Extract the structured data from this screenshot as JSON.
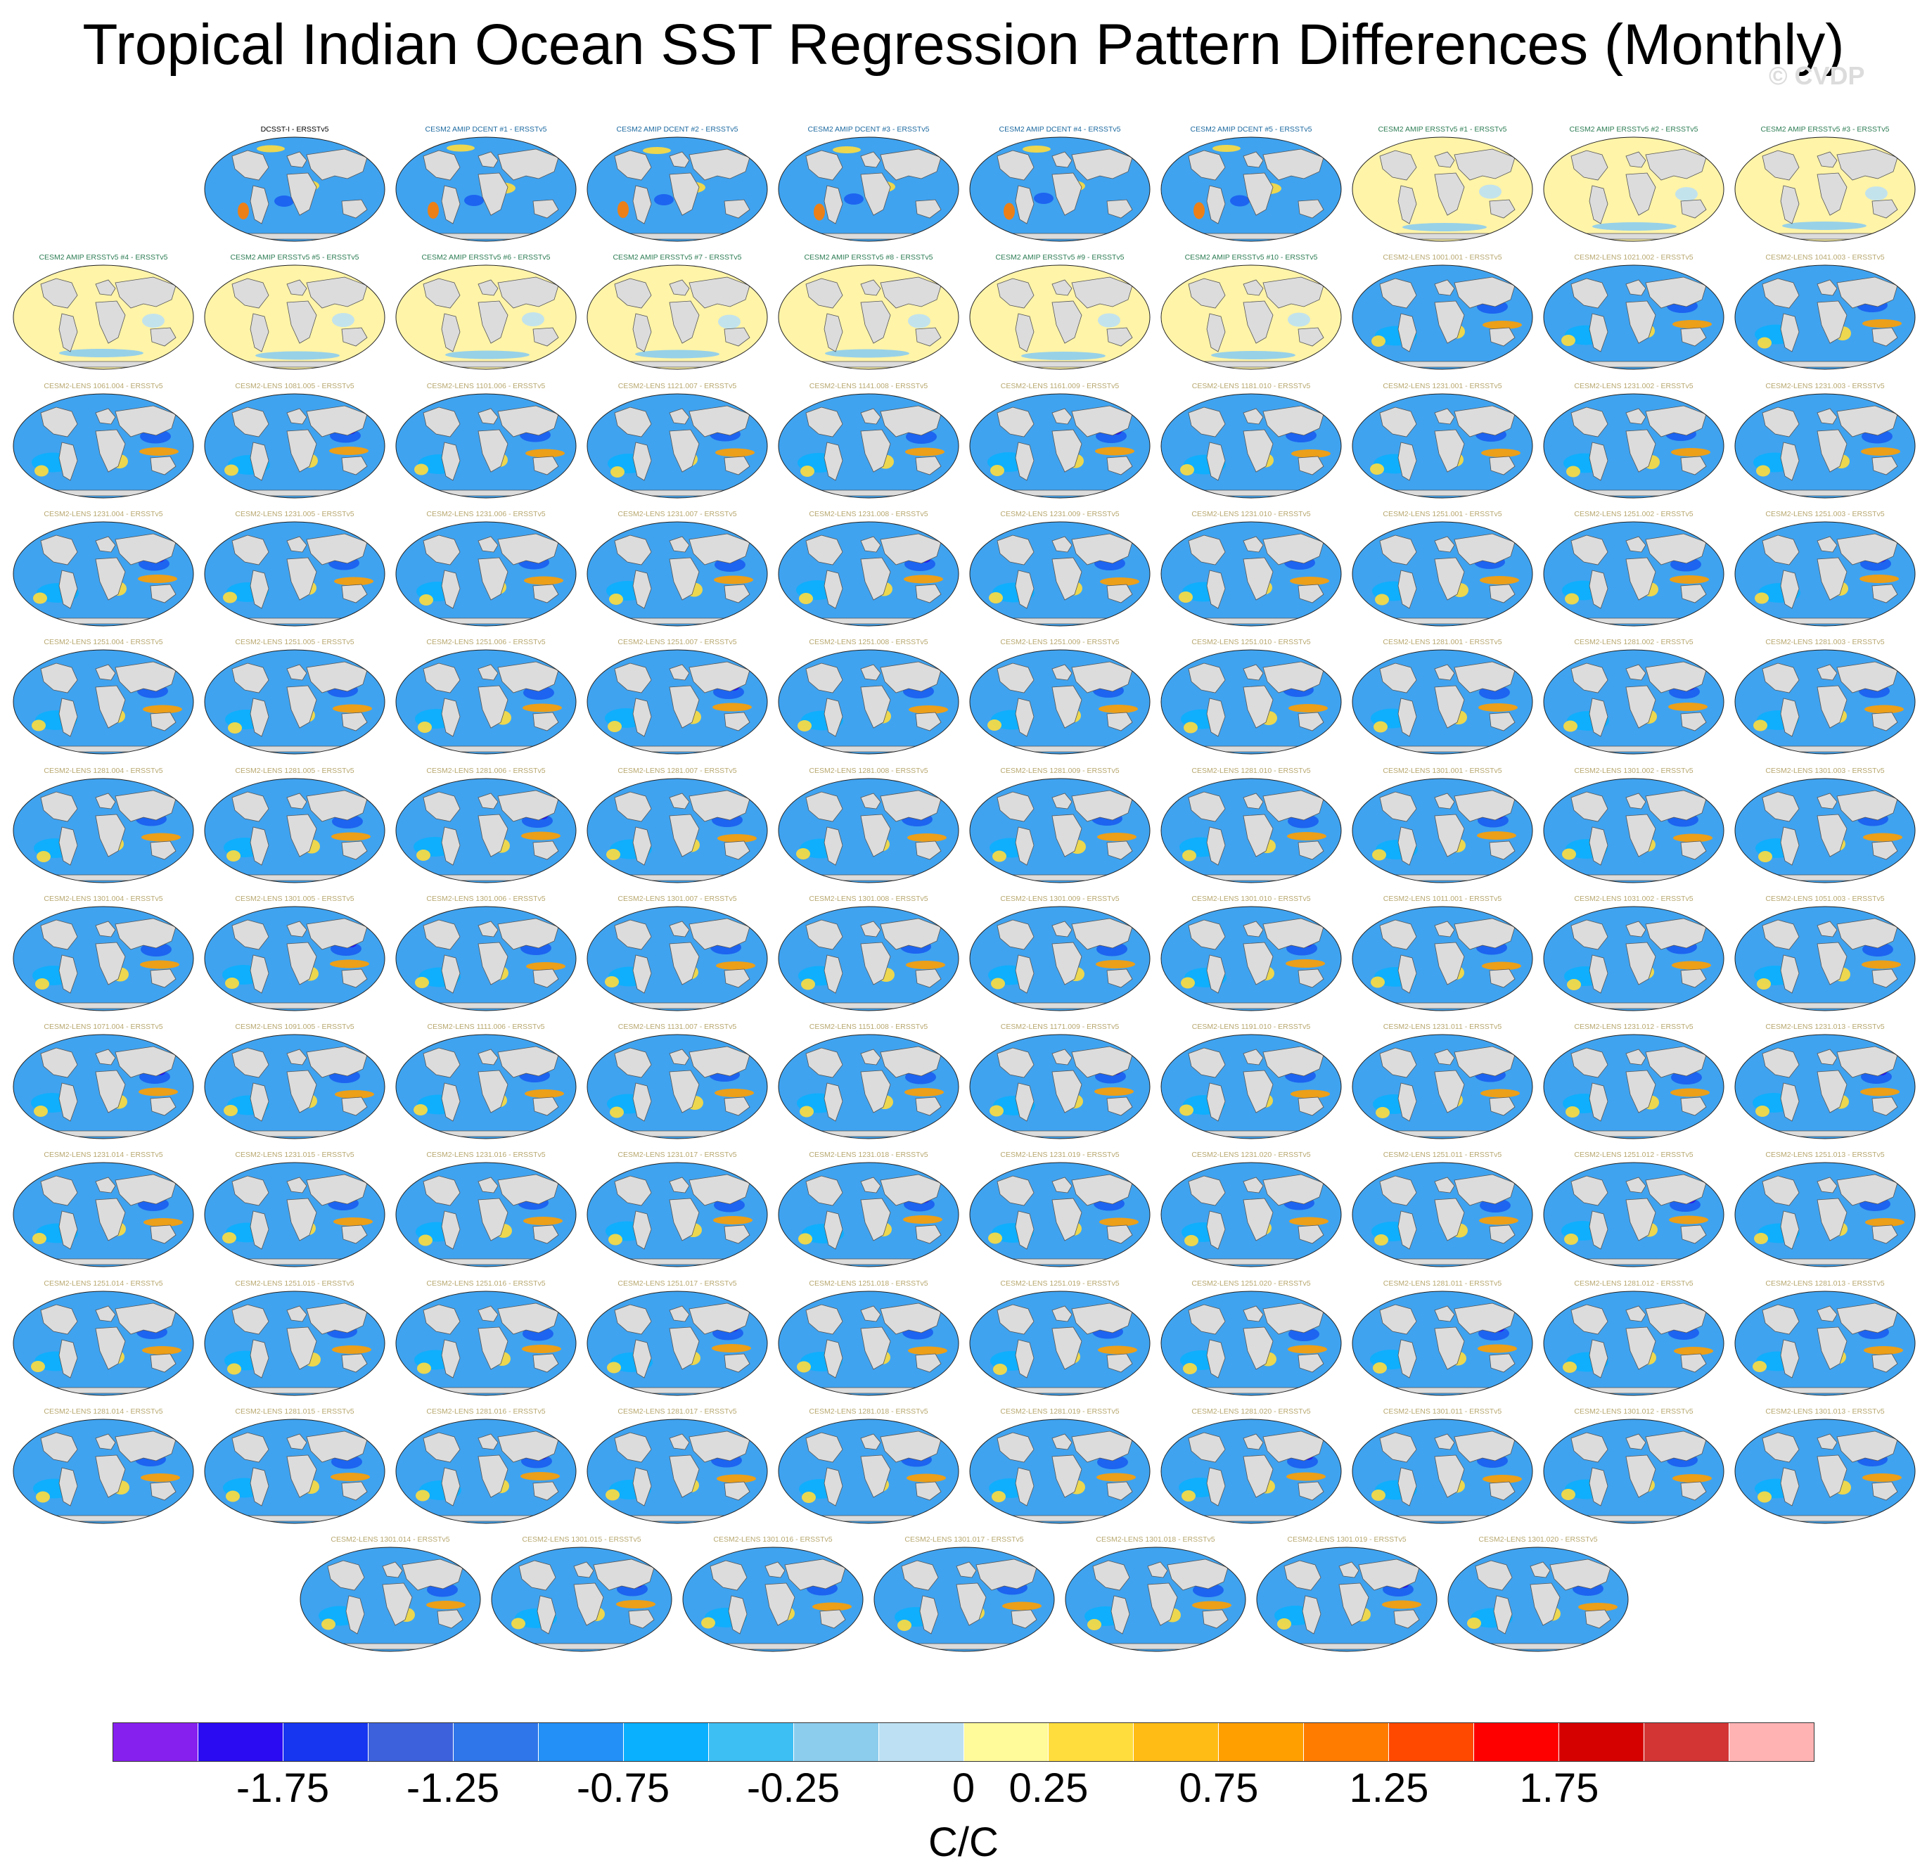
{
  "title": "Tropical Indian Ocean SST Regression Pattern Differences (Monthly)",
  "watermark": "© CVDP",
  "colorbar": {
    "units": "C/C",
    "tick_labels": [
      "-1.75",
      "-1.25",
      "-0.75",
      "-0.25",
      "0",
      "0.25",
      "0.75",
      "1.25",
      "1.75"
    ],
    "colors": [
      "#8620ee",
      "#2a0bf2",
      "#1636f0",
      "#3d61dd",
      "#2f76ea",
      "#2290f6",
      "#0ab0fe",
      "#3ebff4",
      "#8ccdee",
      "#bde1f3",
      "#fffa9a",
      "#ffdd3d",
      "#ffbc15",
      "#ff9f00",
      "#ff7c00",
      "#ff4800",
      "#ff0000",
      "#d50000",
      "#d33535",
      "#ffb3b3"
    ]
  },
  "panel_rows": [
    {
      "count": 9,
      "start": 1
    },
    {
      "count": 10,
      "start": 0
    },
    {
      "count": 10,
      "start": 0
    },
    {
      "count": 10,
      "start": 0
    },
    {
      "count": 10,
      "start": 0
    },
    {
      "count": 10,
      "start": 0
    },
    {
      "count": 10,
      "start": 0
    },
    {
      "count": 10,
      "start": 0
    },
    {
      "count": 10,
      "start": 0
    },
    {
      "count": 10,
      "start": 0
    },
    {
      "count": 10,
      "start": 0
    },
    {
      "count": 7,
      "start": 1.5
    }
  ],
  "panels": [
    {
      "title": "DCSST-I - ERSSTv5",
      "style": "obs"
    },
    {
      "title": "CESM2 AMIP DCENT #1 - ERSSTv5",
      "style": "dcent"
    },
    {
      "title": "CESM2 AMIP DCENT #2 - ERSSTv5",
      "style": "dcent"
    },
    {
      "title": "CESM2 AMIP DCENT #3 - ERSSTv5",
      "style": "dcent"
    },
    {
      "title": "CESM2 AMIP DCENT #4 - ERSSTv5",
      "style": "dcent"
    },
    {
      "title": "CESM2 AMIP DCENT #5 - ERSSTv5",
      "style": "dcent"
    },
    {
      "title": "CESM2 AMIP ERSSTv5 #1 - ERSSTv5",
      "style": "ersst"
    },
    {
      "title": "CESM2 AMIP ERSSTv5 #2 - ERSSTv5",
      "style": "ersst"
    },
    {
      "title": "CESM2 AMIP ERSSTv5 #3 - ERSSTv5",
      "style": "ersst"
    },
    {
      "title": "CESM2 AMIP ERSSTv5 #4 - ERSSTv5",
      "style": "ersst"
    },
    {
      "title": "CESM2 AMIP ERSSTv5 #5 - ERSSTv5",
      "style": "ersst"
    },
    {
      "title": "CESM2 AMIP ERSSTv5 #6 - ERSSTv5",
      "style": "ersst"
    },
    {
      "title": "CESM2 AMIP ERSSTv5 #7 - ERSSTv5",
      "style": "ersst"
    },
    {
      "title": "CESM2 AMIP ERSSTv5 #8 - ERSSTv5",
      "style": "ersst"
    },
    {
      "title": "CESM2 AMIP ERSSTv5 #9 - ERSSTv5",
      "style": "ersst"
    },
    {
      "title": "CESM2 AMIP ERSSTv5 #10 - ERSSTv5",
      "style": "ersst"
    },
    {
      "title": "CESM2-LENS 1001.001 - ERSSTv5",
      "style": "lens"
    },
    {
      "title": "CESM2-LENS 1021.002 - ERSSTv5",
      "style": "lens"
    },
    {
      "title": "CESM2-LENS 1041.003 - ERSSTv5",
      "style": "lens"
    },
    {
      "title": "CESM2-LENS 1061.004 - ERSSTv5",
      "style": "lens"
    },
    {
      "title": "CESM2-LENS 1081.005 - ERSSTv5",
      "style": "lens"
    },
    {
      "title": "CESM2-LENS 1101.006 - ERSSTv5",
      "style": "lens"
    },
    {
      "title": "CESM2-LENS 1121.007 - ERSSTv5",
      "style": "lens"
    },
    {
      "title": "CESM2-LENS 1141.008 - ERSSTv5",
      "style": "lens"
    },
    {
      "title": "CESM2-LENS 1161.009 - ERSSTv5",
      "style": "lens"
    },
    {
      "title": "CESM2-LENS 1181.010 - ERSSTv5",
      "style": "lens"
    },
    {
      "title": "CESM2-LENS 1231.001 - ERSSTv5",
      "style": "lens"
    },
    {
      "title": "CESM2-LENS 1231.002 - ERSSTv5",
      "style": "lens"
    },
    {
      "title": "CESM2-LENS 1231.003 - ERSSTv5",
      "style": "lens"
    },
    {
      "title": "CESM2-LENS 1231.004 - ERSSTv5",
      "style": "lens"
    },
    {
      "title": "CESM2-LENS 1231.005 - ERSSTv5",
      "style": "lens"
    },
    {
      "title": "CESM2-LENS 1231.006 - ERSSTv5",
      "style": "lens"
    },
    {
      "title": "CESM2-LENS 1231.007 - ERSSTv5",
      "style": "lens"
    },
    {
      "title": "CESM2-LENS 1231.008 - ERSSTv5",
      "style": "lens"
    },
    {
      "title": "CESM2-LENS 1231.009 - ERSSTv5",
      "style": "lens"
    },
    {
      "title": "CESM2-LENS 1231.010 - ERSSTv5",
      "style": "lens"
    },
    {
      "title": "CESM2-LENS 1251.001 - ERSSTv5",
      "style": "lens"
    },
    {
      "title": "CESM2-LENS 1251.002 - ERSSTv5",
      "style": "lens"
    },
    {
      "title": "CESM2-LENS 1251.003 - ERSSTv5",
      "style": "lens"
    },
    {
      "title": "CESM2-LENS 1251.004 - ERSSTv5",
      "style": "lens"
    },
    {
      "title": "CESM2-LENS 1251.005 - ERSSTv5",
      "style": "lens"
    },
    {
      "title": "CESM2-LENS 1251.006 - ERSSTv5",
      "style": "lens"
    },
    {
      "title": "CESM2-LENS 1251.007 - ERSSTv5",
      "style": "lens"
    },
    {
      "title": "CESM2-LENS 1251.008 - ERSSTv5",
      "style": "lens"
    },
    {
      "title": "CESM2-LENS 1251.009 - ERSSTv5",
      "style": "lens"
    },
    {
      "title": "CESM2-LENS 1251.010 - ERSSTv5",
      "style": "lens"
    },
    {
      "title": "CESM2-LENS 1281.001 - ERSSTv5",
      "style": "lens"
    },
    {
      "title": "CESM2-LENS 1281.002 - ERSSTv5",
      "style": "lens"
    },
    {
      "title": "CESM2-LENS 1281.003 - ERSSTv5",
      "style": "lens"
    },
    {
      "title": "CESM2-LENS 1281.004 - ERSSTv5",
      "style": "lens"
    },
    {
      "title": "CESM2-LENS 1281.005 - ERSSTv5",
      "style": "lens"
    },
    {
      "title": "CESM2-LENS 1281.006 - ERSSTv5",
      "style": "lens"
    },
    {
      "title": "CESM2-LENS 1281.007 - ERSSTv5",
      "style": "lens"
    },
    {
      "title": "CESM2-LENS 1281.008 - ERSSTv5",
      "style": "lens"
    },
    {
      "title": "CESM2-LENS 1281.009 - ERSSTv5",
      "style": "lens"
    },
    {
      "title": "CESM2-LENS 1281.010 - ERSSTv5",
      "style": "lens"
    },
    {
      "title": "CESM2-LENS 1301.001 - ERSSTv5",
      "style": "lens"
    },
    {
      "title": "CESM2-LENS 1301.002 - ERSSTv5",
      "style": "lens"
    },
    {
      "title": "CESM2-LENS 1301.003 - ERSSTv5",
      "style": "lens"
    },
    {
      "title": "CESM2-LENS 1301.004 - ERSSTv5",
      "style": "lens"
    },
    {
      "title": "CESM2-LENS 1301.005 - ERSSTv5",
      "style": "lens"
    },
    {
      "title": "CESM2-LENS 1301.006 - ERSSTv5",
      "style": "lens"
    },
    {
      "title": "CESM2-LENS 1301.007 - ERSSTv5",
      "style": "lens"
    },
    {
      "title": "CESM2-LENS 1301.008 - ERSSTv5",
      "style": "lens"
    },
    {
      "title": "CESM2-LENS 1301.009 - ERSSTv5",
      "style": "lens"
    },
    {
      "title": "CESM2-LENS 1301.010 - ERSSTv5",
      "style": "lens"
    },
    {
      "title": "CESM2-LENS 1011.001 - ERSSTv5",
      "style": "lens"
    },
    {
      "title": "CESM2-LENS 1031.002 - ERSSTv5",
      "style": "lens"
    },
    {
      "title": "CESM2-LENS 1051.003 - ERSSTv5",
      "style": "lens"
    },
    {
      "title": "CESM2-LENS 1071.004 - ERSSTv5",
      "style": "lens"
    },
    {
      "title": "CESM2-LENS 1091.005 - ERSSTv5",
      "style": "lens"
    },
    {
      "title": "CESM2-LENS 1111.006 - ERSSTv5",
      "style": "lens"
    },
    {
      "title": "CESM2-LENS 1131.007 - ERSSTv5",
      "style": "lens"
    },
    {
      "title": "CESM2-LENS 1151.008 - ERSSTv5",
      "style": "lens"
    },
    {
      "title": "CESM2-LENS 1171.009 - ERSSTv5",
      "style": "lens"
    },
    {
      "title": "CESM2-LENS 1191.010 - ERSSTv5",
      "style": "lens"
    },
    {
      "title": "CESM2-LENS 1231.011 - ERSSTv5",
      "style": "lens"
    },
    {
      "title": "CESM2-LENS 1231.012 - ERSSTv5",
      "style": "lens"
    },
    {
      "title": "CESM2-LENS 1231.013 - ERSSTv5",
      "style": "lens"
    },
    {
      "title": "CESM2-LENS 1231.014 - ERSSTv5",
      "style": "lens"
    },
    {
      "title": "CESM2-LENS 1231.015 - ERSSTv5",
      "style": "lens"
    },
    {
      "title": "CESM2-LENS 1231.016 - ERSSTv5",
      "style": "lens"
    },
    {
      "title": "CESM2-LENS 1231.017 - ERSSTv5",
      "style": "lens"
    },
    {
      "title": "CESM2-LENS 1231.018 - ERSSTv5",
      "style": "lens"
    },
    {
      "title": "CESM2-LENS 1231.019 - ERSSTv5",
      "style": "lens"
    },
    {
      "title": "CESM2-LENS 1231.020 - ERSSTv5",
      "style": "lens"
    },
    {
      "title": "CESM2-LENS 1251.011 - ERSSTv5",
      "style": "lens"
    },
    {
      "title": "CESM2-LENS 1251.012 - ERSSTv5",
      "style": "lens"
    },
    {
      "title": "CESM2-LENS 1251.013 - ERSSTv5",
      "style": "lens"
    },
    {
      "title": "CESM2-LENS 1251.014 - ERSSTv5",
      "style": "lens"
    },
    {
      "title": "CESM2-LENS 1251.015 - ERSSTv5",
      "style": "lens"
    },
    {
      "title": "CESM2-LENS 1251.016 - ERSSTv5",
      "style": "lens"
    },
    {
      "title": "CESM2-LENS 1251.017 - ERSSTv5",
      "style": "lens"
    },
    {
      "title": "CESM2-LENS 1251.018 - ERSSTv5",
      "style": "lens"
    },
    {
      "title": "CESM2-LENS 1251.019 - ERSSTv5",
      "style": "lens"
    },
    {
      "title": "CESM2-LENS 1251.020 - ERSSTv5",
      "style": "lens"
    },
    {
      "title": "CESM2-LENS 1281.011 - ERSSTv5",
      "style": "lens"
    },
    {
      "title": "CESM2-LENS 1281.012 - ERSSTv5",
      "style": "lens"
    },
    {
      "title": "CESM2-LENS 1281.013 - ERSSTv5",
      "style": "lens"
    },
    {
      "title": "CESM2-LENS 1281.014 - ERSSTv5",
      "style": "lens"
    },
    {
      "title": "CESM2-LENS 1281.015 - ERSSTv5",
      "style": "lens"
    },
    {
      "title": "CESM2-LENS 1281.016 - ERSSTv5",
      "style": "lens"
    },
    {
      "title": "CESM2-LENS 1281.017 - ERSSTv5",
      "style": "lens"
    },
    {
      "title": "CESM2-LENS 1281.018 - ERSSTv5",
      "style": "lens"
    },
    {
      "title": "CESM2-LENS 1281.019 - ERSSTv5",
      "style": "lens"
    },
    {
      "title": "CESM2-LENS 1281.020 - ERSSTv5",
      "style": "lens"
    },
    {
      "title": "CESM2-LENS 1301.011 - ERSSTv5",
      "style": "lens"
    },
    {
      "title": "CESM2-LENS 1301.012 - ERSSTv5",
      "style": "lens"
    },
    {
      "title": "CESM2-LENS 1301.013 - ERSSTv5",
      "style": "lens"
    },
    {
      "title": "CESM2-LENS 1301.014 - ERSSTv5",
      "style": "lens"
    },
    {
      "title": "CESM2-LENS 1301.015 - ERSSTv5",
      "style": "lens"
    },
    {
      "title": "CESM2-LENS 1301.016 - ERSSTv5",
      "style": "lens"
    },
    {
      "title": "CESM2-LENS 1301.017 - ERSSTv5",
      "style": "lens"
    },
    {
      "title": "CESM2-LENS 1301.018 - ERSSTv5",
      "style": "lens"
    },
    {
      "title": "CESM2-LENS 1301.019 - ERSSTv5",
      "style": "lens"
    },
    {
      "title": "CESM2-LENS 1301.020 - ERSSTv5",
      "style": "lens"
    }
  ],
  "title_colors": {
    "obs": "#000000",
    "dcent": "#1e6aa0",
    "ersst": "#2e7d55",
    "lens": "#b8a870"
  },
  "map_colors": {
    "land": "#dcdcdc",
    "coast": "#555555",
    "ocean_lens": "#3fa3f0",
    "ocean_ersst": "#fff4a8"
  }
}
